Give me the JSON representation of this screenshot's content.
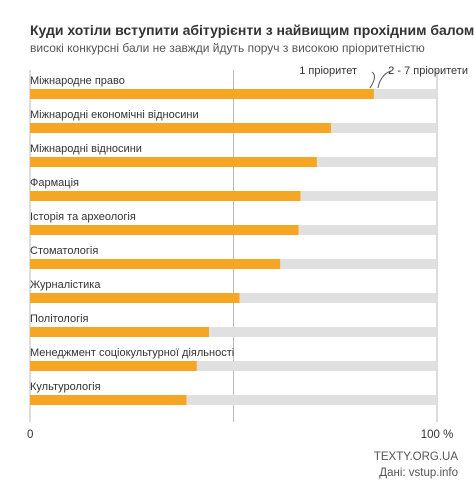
{
  "title": "Куди хотіли вступити абітурієнти з найвищим прохідним балом",
  "subtitle": "високі конкурсні бали не завжди йдуть поруч з високою пріоритетністю",
  "source_line1": "TEXTY.ORG.UA",
  "source_line2": "Дані: vstup.info",
  "colors": {
    "bar": "#f5a623",
    "track": "#e0e0e0",
    "grid": "#bbbbbb",
    "text": "#333333"
  },
  "chart_data": {
    "type": "bar",
    "orientation": "horizontal",
    "stacked": true,
    "xlim": [
      0,
      100
    ],
    "xticks": [
      {
        "value": 0,
        "label": "0"
      },
      {
        "value": 50,
        "label": ""
      },
      {
        "value": 100,
        "label": "100 %"
      }
    ],
    "grid": true,
    "legend": {
      "position": "top-right"
    },
    "categories": [
      "Міжнародне право",
      "Міжнародні економічні відносини",
      "Міжнародні відносини",
      "Фармація",
      "Історія та археологія",
      "Стоматологія",
      "Журналістика",
      "Політологія",
      "Менеджмент соціокультурної діяльності",
      "Культурологія"
    ],
    "series": [
      {
        "name": "1 пріоритет",
        "color": "#f5a623",
        "values": [
          84.5,
          74,
          70.5,
          66.5,
          66,
          61.5,
          51.5,
          44,
          41,
          38.5
        ]
      },
      {
        "name": "2 - 7 пріоритети",
        "color": "#e0e0e0",
        "values": [
          15.5,
          26,
          29.5,
          33.5,
          34,
          38.5,
          48.5,
          56,
          59,
          61.5
        ]
      }
    ]
  }
}
